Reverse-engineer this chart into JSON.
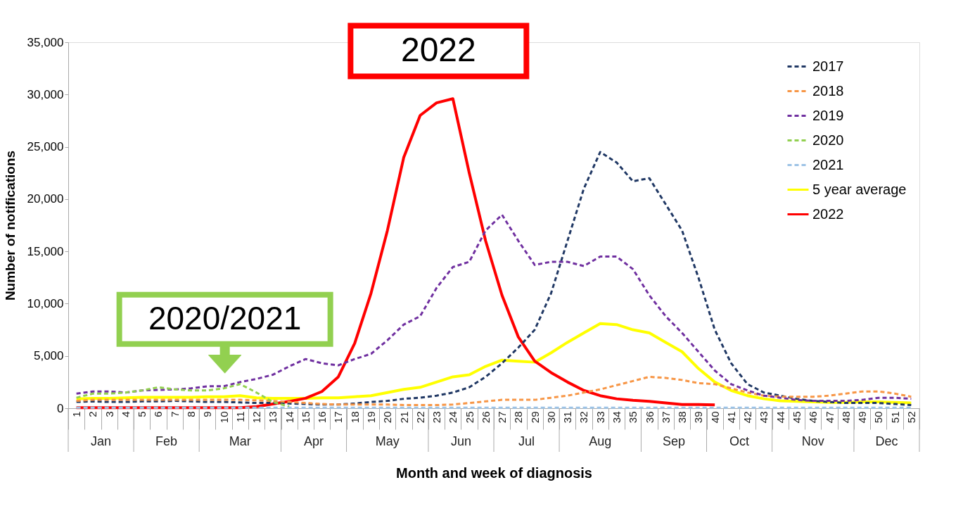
{
  "chart_data": {
    "type": "line",
    "xlabel": "Month and week of diagnosis",
    "ylabel": "Number of notifications",
    "categories": [
      "1",
      "2",
      "3",
      "4",
      "5",
      "6",
      "7",
      "8",
      "9",
      "10",
      "11",
      "12",
      "13",
      "14",
      "15",
      "16",
      "17",
      "18",
      "19",
      "20",
      "21",
      "22",
      "23",
      "24",
      "25",
      "26",
      "27",
      "28",
      "29",
      "30",
      "31",
      "32",
      "33",
      "34",
      "35",
      "36",
      "37",
      "38",
      "39",
      "40",
      "41",
      "42",
      "43",
      "44",
      "45",
      "46",
      "47",
      "48",
      "49",
      "50",
      "51",
      "52"
    ],
    "ylim": [
      0,
      35000
    ],
    "yticks": [
      0,
      {
        "value": 5000,
        "label": "5,000"
      },
      {
        "value": 10000,
        "label": "10,000"
      },
      {
        "value": 15000,
        "label": "15,000"
      },
      {
        "value": 20000,
        "label": "20,000"
      },
      {
        "value": 25000,
        "label": "25,000"
      },
      {
        "value": 30000,
        "label": "30,000"
      },
      {
        "value": 35000,
        "label": "35,000"
      }
    ],
    "grid": false,
    "legend": "top right",
    "marker": "none",
    "series": [
      {
        "name": "2017",
        "color": "#203864",
        "line_style": "dashed",
        "values": [
          600,
          650,
          600,
          600,
          650,
          650,
          700,
          650,
          600,
          600,
          550,
          500,
          500,
          450,
          400,
          350,
          350,
          450,
          600,
          700,
          900,
          1000,
          1200,
          1500,
          2000,
          3000,
          4300,
          5800,
          7500,
          11000,
          16000,
          21000,
          24500,
          23500,
          21700,
          22000,
          19500,
          17000,
          12500,
          7500,
          4300,
          2300,
          1500,
          1200,
          900,
          700,
          600,
          500,
          500,
          500,
          400,
          300
        ]
      },
      {
        "name": "2018",
        "color": "#f79646",
        "line_style": "dashed",
        "values": [
          700,
          800,
          800,
          800,
          800,
          800,
          800,
          800,
          800,
          800,
          800,
          750,
          700,
          600,
          500,
          400,
          350,
          350,
          350,
          350,
          300,
          300,
          300,
          350,
          500,
          650,
          800,
          800,
          800,
          1000,
          1200,
          1500,
          1800,
          2200,
          2600,
          3000,
          2900,
          2700,
          2400,
          2300,
          1900,
          1500,
          1200,
          1100,
          1100,
          1100,
          1200,
          1400,
          1600,
          1600,
          1400,
          1100
        ]
      },
      {
        "name": "2019",
        "color": "#7030a0",
        "line_style": "dashed",
        "values": [
          1400,
          1600,
          1600,
          1500,
          1700,
          1750,
          1800,
          1900,
          2100,
          2100,
          2500,
          2800,
          3200,
          4000,
          4700,
          4300,
          4100,
          4700,
          5200,
          6500,
          8000,
          8800,
          11500,
          13500,
          14000,
          17000,
          18500,
          16000,
          13700,
          14000,
          14000,
          13600,
          14500,
          14500,
          13300,
          10800,
          8800,
          7200,
          5400,
          3600,
          2300,
          1700,
          1200,
          1000,
          800,
          700,
          700,
          700,
          800,
          1000,
          1000,
          900
        ]
      },
      {
        "name": "2020",
        "color": "#92d050",
        "line_style": "dashed",
        "values": [
          1000,
          1400,
          1400,
          1500,
          1700,
          2000,
          1800,
          1700,
          1700,
          1900,
          2300,
          1500,
          600,
          150,
          null,
          null,
          null,
          null,
          null,
          null,
          null,
          null,
          null,
          null,
          null,
          null,
          null,
          null,
          null,
          null,
          null,
          null,
          null,
          null,
          null,
          null,
          null,
          null,
          null,
          null,
          null,
          null,
          null,
          null,
          null,
          null,
          null,
          null,
          null,
          null,
          null,
          null
        ]
      },
      {
        "name": "2021",
        "color": "#9dc3e6",
        "line_style": "dashed",
        "values": [
          50,
          50,
          50,
          50,
          50,
          50,
          50,
          50,
          50,
          50,
          50,
          50,
          50,
          50,
          50,
          50,
          50,
          50,
          50,
          50,
          50,
          50,
          50,
          50,
          50,
          50,
          50,
          50,
          50,
          50,
          50,
          50,
          50,
          50,
          50,
          50,
          50,
          50,
          50,
          50,
          50,
          50,
          50,
          50,
          50,
          50,
          50,
          50,
          50,
          50,
          50,
          50
        ]
      },
      {
        "name": "5 year average",
        "color": "#ffff00",
        "line_style": "solid",
        "values": [
          900,
          950,
          950,
          1000,
          1050,
          1050,
          1050,
          1050,
          1100,
          1100,
          1200,
          1000,
          950,
          950,
          950,
          1000,
          1000,
          1100,
          1200,
          1500,
          1800,
          2000,
          2500,
          3000,
          3200,
          4000,
          4600,
          4500,
          4400,
          5300,
          6300,
          7200,
          8100,
          8000,
          7500,
          7200,
          6300,
          5400,
          3800,
          2500,
          1700,
          1200,
          900,
          700,
          650,
          600,
          550,
          550,
          600,
          600,
          550,
          500
        ]
      },
      {
        "name": "2022",
        "color": "#ff0000",
        "line_style": "solid",
        "values": [
          50,
          50,
          50,
          50,
          50,
          50,
          50,
          50,
          50,
          50,
          50,
          150,
          400,
          650,
          950,
          1600,
          3000,
          6200,
          11000,
          17000,
          24000,
          28000,
          29200,
          29600,
          22500,
          16000,
          10800,
          6800,
          4500,
          3400,
          2500,
          1700,
          1200,
          900,
          750,
          650,
          500,
          350,
          350,
          320,
          null,
          null,
          null,
          null,
          null,
          null,
          null,
          null,
          null,
          null,
          null,
          null
        ]
      }
    ],
    "annotations": [
      "2022",
      "2020/2021",
      "Jan",
      "Feb",
      "Mar",
      "Apr",
      "May",
      "Jun",
      "Jul",
      "Aug",
      "Sep",
      "Oct",
      "Nov",
      "Dec"
    ]
  }
}
